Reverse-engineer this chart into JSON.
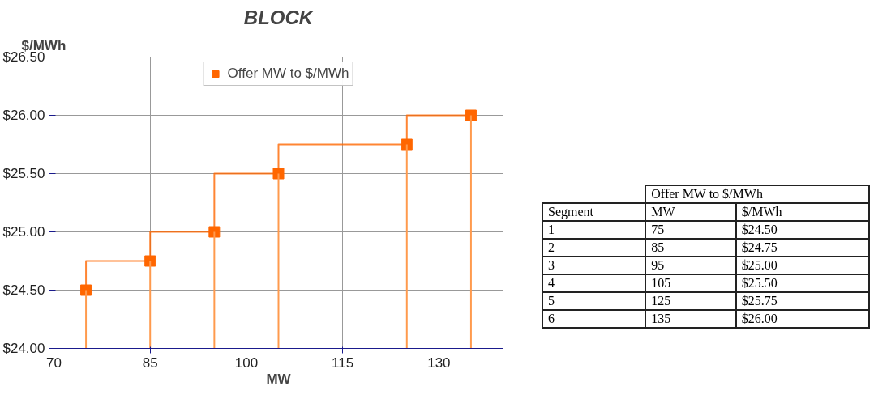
{
  "chart_data": {
    "type": "step",
    "title": "BLOCK",
    "xlabel": "MW",
    "ylabel": "$/MWh",
    "x": [
      75,
      85,
      95,
      105,
      125,
      135
    ],
    "series": [
      {
        "name": "Offer MW to $/MWh",
        "color": "#ff6600",
        "values": [
          24.5,
          24.75,
          25.0,
          25.5,
          25.75,
          26.0
        ]
      },
      {
        "type": "bar",
        "color": "#ff9a4d",
        "values": [
          24.5,
          24.75,
          25.0,
          25.5,
          25.75,
          26.0
        ]
      }
    ],
    "value_labels": [
      "$24.50",
      "$24.75",
      "$25.00",
      "$25.50",
      "$25.75",
      "$26.00"
    ],
    "annotations": [
      "Offer MW to $/MWh",
      "Segment",
      "MW",
      "$/MWh",
      "1",
      "2",
      "3",
      "4",
      "5",
      "6",
      "75",
      "85",
      "95",
      "105",
      "125",
      "135"
    ],
    "xlim": [
      70,
      140
    ],
    "xticks": [
      70,
      85,
      100,
      115,
      130
    ],
    "ylim": [
      24.0,
      26.5
    ],
    "yticks": [
      {
        "value": 24.0,
        "label": "$24.00"
      },
      {
        "value": 24.5,
        "label": "$24.50"
      },
      {
        "value": 25.0,
        "label": "$25.00"
      },
      {
        "value": 25.5,
        "label": "$25.50"
      },
      {
        "value": 26.0,
        "label": "$26.00"
      },
      {
        "value": 26.5,
        "label": "$26.50"
      }
    ],
    "grid": true,
    "legend": "top",
    "marker": "square",
    "line_style": "solid"
  }
}
